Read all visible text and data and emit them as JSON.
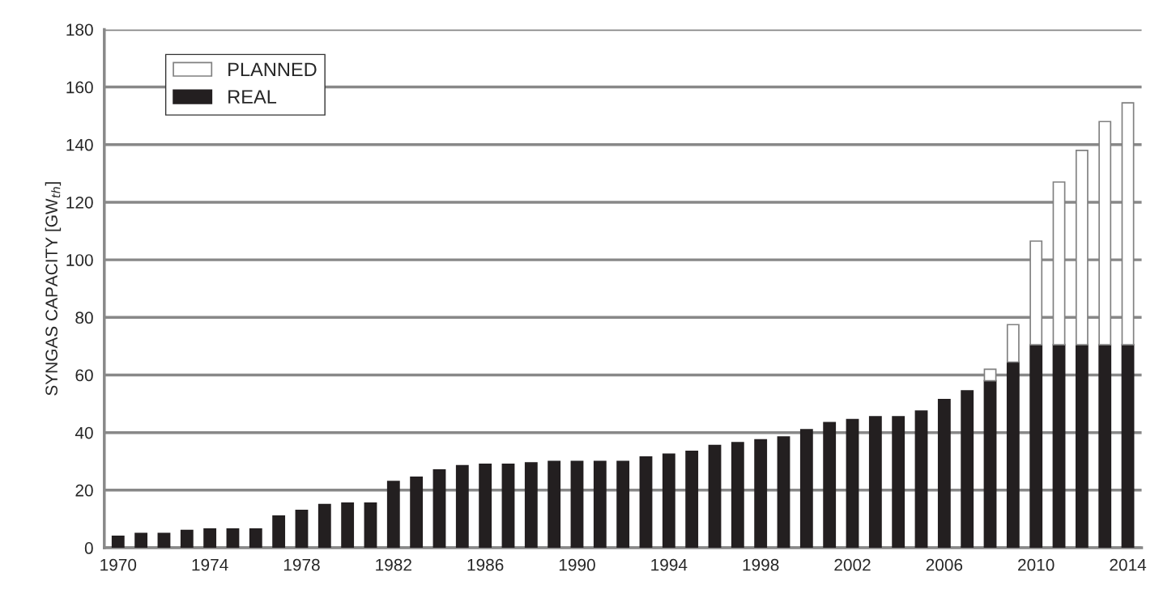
{
  "chart_data": {
    "type": "bar",
    "stacked": true,
    "ylabel": "SYNGAS CAPACITY [GW$_{th}$]",
    "categories": [
      "1970",
      null,
      null,
      null,
      "1974",
      null,
      null,
      null,
      "1978",
      null,
      null,
      null,
      "1982",
      null,
      null,
      null,
      "1986",
      null,
      null,
      null,
      "1990",
      null,
      null,
      null,
      "1994",
      null,
      null,
      null,
      "1998",
      null,
      null,
      null,
      "2002",
      null,
      null,
      null,
      "2006",
      null,
      null,
      null,
      "2010",
      null,
      null,
      null,
      "2014"
    ],
    "series": [
      {
        "name": "REAL",
        "color": "#231f20",
        "values": [
          4,
          5,
          5,
          6,
          6.5,
          6.5,
          6.5,
          11,
          13,
          15,
          15.5,
          15.5,
          23,
          24.5,
          27,
          28.5,
          29,
          29,
          29.5,
          30,
          30,
          30,
          30,
          31.5,
          32.5,
          33.5,
          35.5,
          36.5,
          37.5,
          38.5,
          41,
          43.5,
          44.5,
          45.5,
          45.5,
          47.5,
          51.5,
          54.5,
          58,
          64.5,
          70.5,
          70.5,
          70.5,
          70.5,
          70.5
        ]
      },
      {
        "name": "PLANNED",
        "color": "#ffffff",
        "values": [
          null,
          null,
          null,
          null,
          null,
          null,
          null,
          null,
          null,
          null,
          null,
          null,
          null,
          null,
          null,
          null,
          null,
          null,
          null,
          null,
          null,
          null,
          null,
          null,
          null,
          null,
          null,
          null,
          null,
          null,
          null,
          null,
          null,
          null,
          null,
          null,
          null,
          null,
          4,
          13,
          36,
          56.5,
          67.5,
          77.5,
          84
        ]
      }
    ],
    "ylim": [
      0,
      180
    ],
    "yticks": [
      0,
      20,
      40,
      60,
      80,
      100,
      120,
      140,
      160,
      180
    ],
    "grid": "y",
    "legend": "top left"
  }
}
